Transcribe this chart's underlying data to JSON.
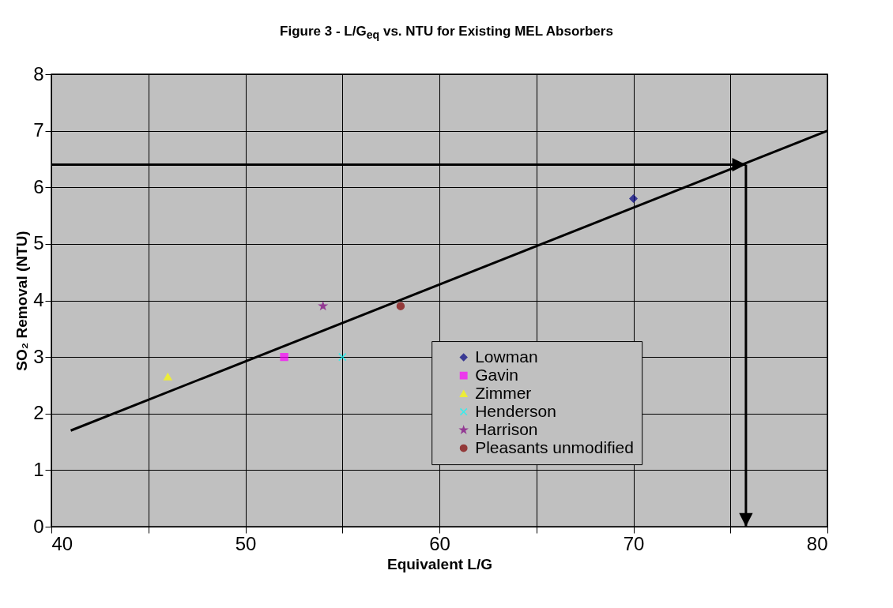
{
  "chart_data": {
    "type": "scatter",
    "title": "Figure 3 - L/G$_{eq}$ vs. NTU for Existing MEL Absorbers",
    "xlabel": "Equivalent L/G",
    "ylabel": "SO₂ Removal (NTU)",
    "xlim": [
      40,
      80
    ],
    "ylim": [
      0,
      8
    ],
    "xticks": [
      40,
      {
        "value": 45,
        "label": null
      },
      50,
      {
        "value": 55,
        "label": null
      },
      60,
      {
        "value": 65,
        "label": null
      },
      70,
      {
        "value": 75,
        "label": null
      },
      80
    ],
    "yticks": [
      0,
      1,
      2,
      3,
      4,
      5,
      6,
      7,
      8
    ],
    "grid": true,
    "legend": "bottom right",
    "series": [
      {
        "name": "Lowman",
        "color": "#000080",
        "marker": "diamond",
        "x": [
          70
        ],
        "values": [
          5.8
        ]
      },
      {
        "name": "Gavin",
        "color": "#ff00ff",
        "marker": "square",
        "x": [
          52
        ],
        "values": [
          3.0
        ]
      },
      {
        "name": "Zimmer",
        "color": "#ffff00",
        "marker": "triangle",
        "x": [
          46
        ],
        "values": [
          2.65
        ]
      },
      {
        "name": "Henderson",
        "color": "#00ffff",
        "marker": "cross",
        "x": [
          55
        ],
        "values": [
          3.0
        ]
      },
      {
        "name": "Harrison",
        "color": "#800080",
        "marker": "star",
        "x": [
          54
        ],
        "values": [
          3.9
        ]
      },
      {
        "name": "Pleasants unmodified",
        "color": "#800000",
        "marker": "circle",
        "x": [
          58
        ],
        "values": [
          3.9
        ]
      },
      {
        "type": "line",
        "color": "#000000",
        "x": [
          41,
          80
        ],
        "values": [
          1.7,
          7.0
        ]
      }
    ],
    "ref_lines": [
      {
        "axis": "y",
        "value": 6.4
      },
      {
        "axis": "x",
        "value": 75.8
      }
    ]
  }
}
